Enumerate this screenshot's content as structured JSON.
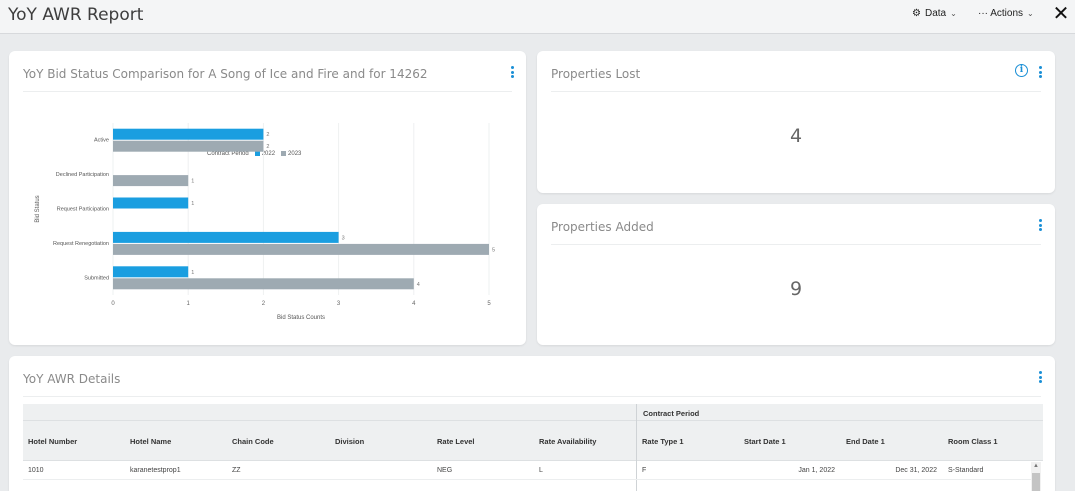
{
  "header": {
    "title": "YoY AWR Report",
    "data_label": "Data",
    "actions_label": "··· Actions"
  },
  "chart_card": {
    "title": "YoY Bid Status Comparison for A Song of Ice and Fire and for 14262"
  },
  "chart_data": {
    "type": "bar",
    "orientation": "horizontal",
    "title": "",
    "legend_title": "Contract Period",
    "legend_position": "top",
    "xlabel": "Bid Status Counts",
    "ylabel": "Bid Status",
    "xlim": [
      0,
      5
    ],
    "xticks": [
      "0",
      "1",
      "2",
      "3",
      "4",
      "5"
    ],
    "grid": true,
    "categories": [
      "Active",
      "Declined Participation",
      "Request Participation",
      "Request Renegotiation",
      "Submitted"
    ],
    "series": [
      {
        "name": "2022",
        "color": "#1a9ee0",
        "values": [
          2,
          null,
          1,
          3,
          1
        ]
      },
      {
        "name": "2023",
        "color": "#9eaab2",
        "values": [
          2,
          1,
          null,
          5,
          4
        ]
      }
    ]
  },
  "lost_card": {
    "title": "Properties Lost",
    "value": "4"
  },
  "added_card": {
    "title": "Properties Added",
    "value": "9"
  },
  "details_card": {
    "title": "YoY AWR Details",
    "group_header": "Contract Period",
    "columns": [
      "Hotel Number",
      "Hotel Name",
      "Chain Code",
      "Division",
      "Rate Level",
      "Rate Availability",
      "Rate Type 1",
      "Start Date 1",
      "End Date 1",
      "Room Class 1"
    ],
    "rows": [
      [
        "1010",
        "karanetestprop1",
        "ZZ",
        "",
        "NEG",
        "L",
        "F",
        "Jan 1, 2022",
        "Dec 31, 2022",
        "S-Standard"
      ]
    ]
  },
  "colors": {
    "accent": "#1a8fd6",
    "bar_2022": "#1a9ee0",
    "bar_2023": "#9eaab2"
  }
}
